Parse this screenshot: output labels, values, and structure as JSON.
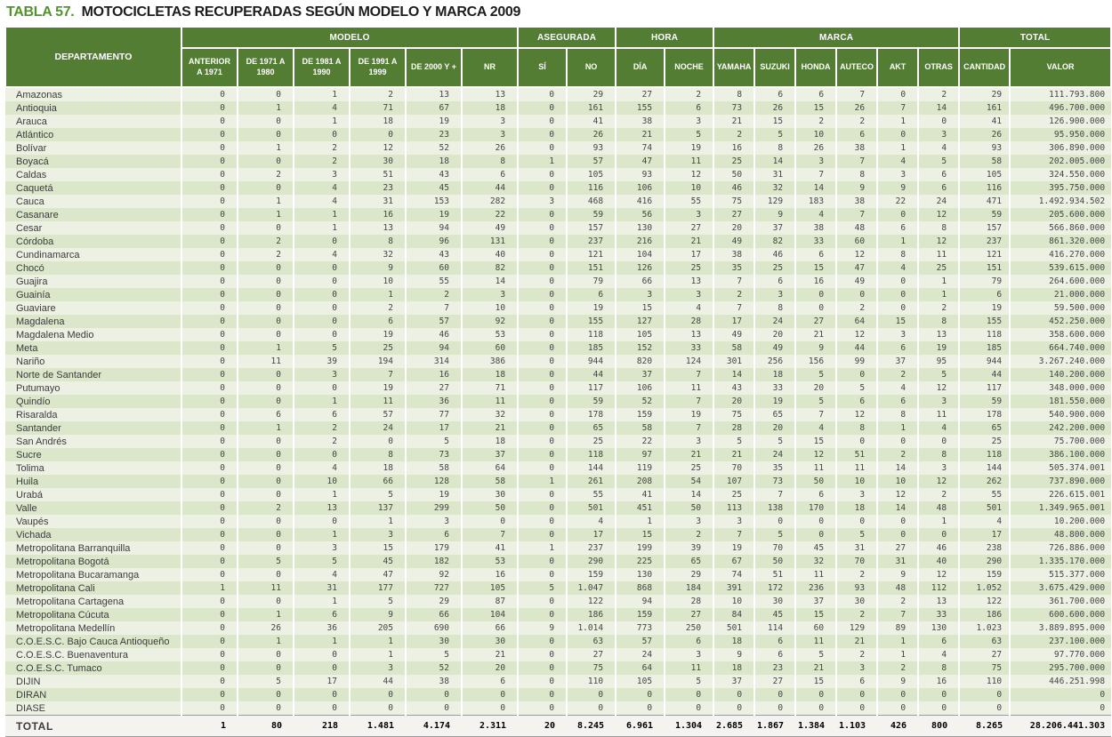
{
  "title": {
    "tabla_label": "TABLA",
    "number": "57.",
    "caption": "MOTOCICLETAS RECUPERADAS SEGÚN MODELO Y MARCA 2009"
  },
  "colors": {
    "header_green": "#527d33",
    "title_green": "#54922e",
    "stripe_light": "#edf1e3",
    "stripe_dark": "#dbe6cb",
    "total_bg": "#f4f3f0"
  },
  "table": {
    "header": {
      "department_label": "DEPARTAMENTO",
      "groups": [
        {
          "label": "MODELO",
          "cols": [
            "ANTERIOR\nA 1971",
            "DE 1971 A\n1980",
            "DE 1981 A\n1990",
            "DE 1991 A\n1999",
            "DE 2000 Y +",
            "NR"
          ]
        },
        {
          "label": "ASEGURADA",
          "cols": [
            "SÍ",
            "NO"
          ]
        },
        {
          "label": "HORA",
          "cols": [
            "DÍA",
            "NOCHE"
          ]
        },
        {
          "label": "MARCA",
          "cols": [
            "YAMAHA",
            "SUZUKI",
            "HONDA",
            "AUTECO",
            "AKT",
            "OTRAS"
          ]
        },
        {
          "label": "TOTAL",
          "cols": [
            "CANTIDAD",
            "VALOR"
          ]
        }
      ]
    },
    "rows": [
      {
        "name": "Amazonas",
        "values": [
          "0",
          "0",
          "1",
          "2",
          "13",
          "13",
          "0",
          "29",
          "27",
          "2",
          "8",
          "6",
          "6",
          "7",
          "0",
          "2",
          "29",
          "111.793.800"
        ]
      },
      {
        "name": "Antioquia",
        "values": [
          "0",
          "1",
          "4",
          "71",
          "67",
          "18",
          "0",
          "161",
          "155",
          "6",
          "73",
          "26",
          "15",
          "26",
          "7",
          "14",
          "161",
          "496.700.000"
        ]
      },
      {
        "name": "Arauca",
        "values": [
          "0",
          "0",
          "1",
          "18",
          "19",
          "3",
          "0",
          "41",
          "38",
          "3",
          "21",
          "15",
          "2",
          "2",
          "1",
          "0",
          "41",
          "126.900.000"
        ]
      },
      {
        "name": "Atlántico",
        "values": [
          "0",
          "0",
          "0",
          "0",
          "23",
          "3",
          "0",
          "26",
          "21",
          "5",
          "2",
          "5",
          "10",
          "6",
          "0",
          "3",
          "26",
          "95.950.000"
        ]
      },
      {
        "name": "Bolívar",
        "values": [
          "0",
          "1",
          "2",
          "12",
          "52",
          "26",
          "0",
          "93",
          "74",
          "19",
          "16",
          "8",
          "26",
          "38",
          "1",
          "4",
          "93",
          "306.890.000"
        ]
      },
      {
        "name": "Boyacá",
        "values": [
          "0",
          "0",
          "2",
          "30",
          "18",
          "8",
          "1",
          "57",
          "47",
          "11",
          "25",
          "14",
          "3",
          "7",
          "4",
          "5",
          "58",
          "202.005.000"
        ]
      },
      {
        "name": "Caldas",
        "values": [
          "0",
          "2",
          "3",
          "51",
          "43",
          "6",
          "0",
          "105",
          "93",
          "12",
          "50",
          "31",
          "7",
          "8",
          "3",
          "6",
          "105",
          "324.550.000"
        ]
      },
      {
        "name": "Caquetá",
        "values": [
          "0",
          "0",
          "4",
          "23",
          "45",
          "44",
          "0",
          "116",
          "106",
          "10",
          "46",
          "32",
          "14",
          "9",
          "9",
          "6",
          "116",
          "395.750.000"
        ]
      },
      {
        "name": "Cauca",
        "values": [
          "0",
          "1",
          "4",
          "31",
          "153",
          "282",
          "3",
          "468",
          "416",
          "55",
          "75",
          "129",
          "183",
          "38",
          "22",
          "24",
          "471",
          "1.492.934.502"
        ]
      },
      {
        "name": "Casanare",
        "values": [
          "0",
          "1",
          "1",
          "16",
          "19",
          "22",
          "0",
          "59",
          "56",
          "3",
          "27",
          "9",
          "4",
          "7",
          "0",
          "12",
          "59",
          "205.600.000"
        ]
      },
      {
        "name": "Cesar",
        "values": [
          "0",
          "0",
          "1",
          "13",
          "94",
          "49",
          "0",
          "157",
          "130",
          "27",
          "20",
          "37",
          "38",
          "48",
          "6",
          "8",
          "157",
          "566.860.000"
        ]
      },
      {
        "name": "Córdoba",
        "values": [
          "0",
          "2",
          "0",
          "8",
          "96",
          "131",
          "0",
          "237",
          "216",
          "21",
          "49",
          "82",
          "33",
          "60",
          "1",
          "12",
          "237",
          "861.320.000"
        ]
      },
      {
        "name": "Cundinamarca",
        "values": [
          "0",
          "2",
          "4",
          "32",
          "43",
          "40",
          "0",
          "121",
          "104",
          "17",
          "38",
          "46",
          "6",
          "12",
          "8",
          "11",
          "121",
          "416.270.000"
        ]
      },
      {
        "name": "Chocó",
        "values": [
          "0",
          "0",
          "0",
          "9",
          "60",
          "82",
          "0",
          "151",
          "126",
          "25",
          "35",
          "25",
          "15",
          "47",
          "4",
          "25",
          "151",
          "539.615.000"
        ]
      },
      {
        "name": "Guajira",
        "values": [
          "0",
          "0",
          "0",
          "10",
          "55",
          "14",
          "0",
          "79",
          "66",
          "13",
          "7",
          "6",
          "16",
          "49",
          "0",
          "1",
          "79",
          "264.600.000"
        ]
      },
      {
        "name": "Guainía",
        "values": [
          "0",
          "0",
          "0",
          "1",
          "2",
          "3",
          "0",
          "6",
          "3",
          "3",
          "2",
          "3",
          "0",
          "0",
          "0",
          "1",
          "6",
          "21.000.000"
        ]
      },
      {
        "name": "Guaviare",
        "values": [
          "0",
          "0",
          "0",
          "2",
          "7",
          "10",
          "0",
          "19",
          "15",
          "4",
          "7",
          "8",
          "0",
          "2",
          "0",
          "2",
          "19",
          "59.500.000"
        ]
      },
      {
        "name": "Magdalena",
        "values": [
          "0",
          "0",
          "0",
          "6",
          "57",
          "92",
          "0",
          "155",
          "127",
          "28",
          "17",
          "24",
          "27",
          "64",
          "15",
          "8",
          "155",
          "452.250.000"
        ]
      },
      {
        "name": "Magdalena Medio",
        "values": [
          "0",
          "0",
          "0",
          "19",
          "46",
          "53",
          "0",
          "118",
          "105",
          "13",
          "49",
          "20",
          "21",
          "12",
          "3",
          "13",
          "118",
          "358.600.000"
        ]
      },
      {
        "name": "Meta",
        "values": [
          "0",
          "1",
          "5",
          "25",
          "94",
          "60",
          "0",
          "185",
          "152",
          "33",
          "58",
          "49",
          "9",
          "44",
          "6",
          "19",
          "185",
          "664.740.000"
        ]
      },
      {
        "name": "Nariño",
        "values": [
          "0",
          "11",
          "39",
          "194",
          "314",
          "386",
          "0",
          "944",
          "820",
          "124",
          "301",
          "256",
          "156",
          "99",
          "37",
          "95",
          "944",
          "3.267.240.000"
        ]
      },
      {
        "name": "Norte de Santander",
        "values": [
          "0",
          "0",
          "3",
          "7",
          "16",
          "18",
          "0",
          "44",
          "37",
          "7",
          "14",
          "18",
          "5",
          "0",
          "2",
          "5",
          "44",
          "140.200.000"
        ]
      },
      {
        "name": "Putumayo",
        "values": [
          "0",
          "0",
          "0",
          "19",
          "27",
          "71",
          "0",
          "117",
          "106",
          "11",
          "43",
          "33",
          "20",
          "5",
          "4",
          "12",
          "117",
          "348.000.000"
        ]
      },
      {
        "name": "Quindío",
        "values": [
          "0",
          "0",
          "1",
          "11",
          "36",
          "11",
          "0",
          "59",
          "52",
          "7",
          "20",
          "19",
          "5",
          "6",
          "6",
          "3",
          "59",
          "181.550.000"
        ]
      },
      {
        "name": "Risaralda",
        "values": [
          "0",
          "6",
          "6",
          "57",
          "77",
          "32",
          "0",
          "178",
          "159",
          "19",
          "75",
          "65",
          "7",
          "12",
          "8",
          "11",
          "178",
          "540.900.000"
        ]
      },
      {
        "name": "Santander",
        "values": [
          "0",
          "1",
          "2",
          "24",
          "17",
          "21",
          "0",
          "65",
          "58",
          "7",
          "28",
          "20",
          "4",
          "8",
          "1",
          "4",
          "65",
          "242.200.000"
        ]
      },
      {
        "name": "San Andrés",
        "values": [
          "0",
          "0",
          "2",
          "0",
          "5",
          "18",
          "0",
          "25",
          "22",
          "3",
          "5",
          "5",
          "15",
          "0",
          "0",
          "0",
          "25",
          "75.700.000"
        ]
      },
      {
        "name": "Sucre",
        "values": [
          "0",
          "0",
          "0",
          "8",
          "73",
          "37",
          "0",
          "118",
          "97",
          "21",
          "21",
          "24",
          "12",
          "51",
          "2",
          "8",
          "118",
          "386.100.000"
        ]
      },
      {
        "name": "Tolima",
        "values": [
          "0",
          "0",
          "4",
          "18",
          "58",
          "64",
          "0",
          "144",
          "119",
          "25",
          "70",
          "35",
          "11",
          "11",
          "14",
          "3",
          "144",
          "505.374.001"
        ]
      },
      {
        "name": "Huila",
        "values": [
          "0",
          "0",
          "10",
          "66",
          "128",
          "58",
          "1",
          "261",
          "208",
          "54",
          "107",
          "73",
          "50",
          "10",
          "10",
          "12",
          "262",
          "737.890.000"
        ]
      },
      {
        "name": "Urabá",
        "values": [
          "0",
          "0",
          "1",
          "5",
          "19",
          "30",
          "0",
          "55",
          "41",
          "14",
          "25",
          "7",
          "6",
          "3",
          "12",
          "2",
          "55",
          "226.615.001"
        ]
      },
      {
        "name": "Valle",
        "values": [
          "0",
          "2",
          "13",
          "137",
          "299",
          "50",
          "0",
          "501",
          "451",
          "50",
          "113",
          "138",
          "170",
          "18",
          "14",
          "48",
          "501",
          "1.349.965.001"
        ]
      },
      {
        "name": "Vaupés",
        "values": [
          "0",
          "0",
          "0",
          "1",
          "3",
          "0",
          "0",
          "4",
          "1",
          "3",
          "3",
          "0",
          "0",
          "0",
          "0",
          "1",
          "4",
          "10.200.000"
        ]
      },
      {
        "name": "Vichada",
        "values": [
          "0",
          "0",
          "1",
          "3",
          "6",
          "7",
          "0",
          "17",
          "15",
          "2",
          "7",
          "5",
          "0",
          "5",
          "0",
          "0",
          "17",
          "48.800.000"
        ]
      },
      {
        "name": "Metropolitana Barranquilla",
        "values": [
          "0",
          "0",
          "3",
          "15",
          "179",
          "41",
          "1",
          "237",
          "199",
          "39",
          "19",
          "70",
          "45",
          "31",
          "27",
          "46",
          "238",
          "726.886.000"
        ]
      },
      {
        "name": "Metropolitana Bogotá",
        "values": [
          "0",
          "5",
          "5",
          "45",
          "182",
          "53",
          "0",
          "290",
          "225",
          "65",
          "67",
          "50",
          "32",
          "70",
          "31",
          "40",
          "290",
          "1.335.170.000"
        ]
      },
      {
        "name": "Metropolitana Bucaramanga",
        "values": [
          "0",
          "0",
          "4",
          "47",
          "92",
          "16",
          "0",
          "159",
          "130",
          "29",
          "74",
          "51",
          "11",
          "2",
          "9",
          "12",
          "159",
          "515.377.000"
        ]
      },
      {
        "name": "Metropolitana Cali",
        "values": [
          "1",
          "11",
          "31",
          "177",
          "727",
          "105",
          "5",
          "1.047",
          "868",
          "184",
          "391",
          "172",
          "236",
          "93",
          "48",
          "112",
          "1.052",
          "3.675.429.000"
        ]
      },
      {
        "name": "Metropolitana Cartagena",
        "values": [
          "0",
          "0",
          "1",
          "5",
          "29",
          "87",
          "0",
          "122",
          "94",
          "28",
          "10",
          "30",
          "37",
          "30",
          "2",
          "13",
          "122",
          "361.700.000"
        ]
      },
      {
        "name": "Metropolitana Cúcuta",
        "values": [
          "0",
          "1",
          "6",
          "9",
          "66",
          "104",
          "0",
          "186",
          "159",
          "27",
          "84",
          "45",
          "15",
          "2",
          "7",
          "33",
          "186",
          "600.600.000"
        ]
      },
      {
        "name": "Metropolitana Medellín",
        "values": [
          "0",
          "26",
          "36",
          "205",
          "690",
          "66",
          "9",
          "1.014",
          "773",
          "250",
          "501",
          "114",
          "60",
          "129",
          "89",
          "130",
          "1.023",
          "3.889.895.000"
        ]
      },
      {
        "name": "C.O.E.S.C. Bajo Cauca Antioqueño",
        "values": [
          "0",
          "1",
          "1",
          "1",
          "30",
          "30",
          "0",
          "63",
          "57",
          "6",
          "18",
          "6",
          "11",
          "21",
          "1",
          "6",
          "63",
          "237.100.000"
        ]
      },
      {
        "name": "C.O.E.S.C. Buenaventura",
        "values": [
          "0",
          "0",
          "0",
          "1",
          "5",
          "21",
          "0",
          "27",
          "24",
          "3",
          "9",
          "6",
          "5",
          "2",
          "1",
          "4",
          "27",
          "97.770.000"
        ]
      },
      {
        "name": "C.O.E.S.C. Tumaco",
        "values": [
          "0",
          "0",
          "0",
          "3",
          "52",
          "20",
          "0",
          "75",
          "64",
          "11",
          "18",
          "23",
          "21",
          "3",
          "2",
          "8",
          "75",
          "295.700.000"
        ]
      },
      {
        "name": "DIJIN",
        "values": [
          "0",
          "5",
          "17",
          "44",
          "38",
          "6",
          "0",
          "110",
          "105",
          "5",
          "37",
          "27",
          "15",
          "6",
          "9",
          "16",
          "110",
          "446.251.998"
        ]
      },
      {
        "name": "DIRAN",
        "values": [
          "0",
          "0",
          "0",
          "0",
          "0",
          "0",
          "0",
          "0",
          "0",
          "0",
          "0",
          "0",
          "0",
          "0",
          "0",
          "0",
          "0",
          "0"
        ]
      },
      {
        "name": "DIASE",
        "values": [
          "0",
          "0",
          "0",
          "0",
          "0",
          "0",
          "0",
          "0",
          "0",
          "0",
          "0",
          "0",
          "0",
          "0",
          "0",
          "0",
          "0",
          "0"
        ]
      }
    ],
    "total_row": {
      "label": "TOTAL",
      "values": [
        "1",
        "80",
        "218",
        "1.481",
        "4.174",
        "2.311",
        "20",
        "8.245",
        "6.961",
        "1.304",
        "2.685",
        "1.867",
        "1.384",
        "1.103",
        "426",
        "800",
        "8.265",
        "28.206.441.303"
      ]
    }
  }
}
